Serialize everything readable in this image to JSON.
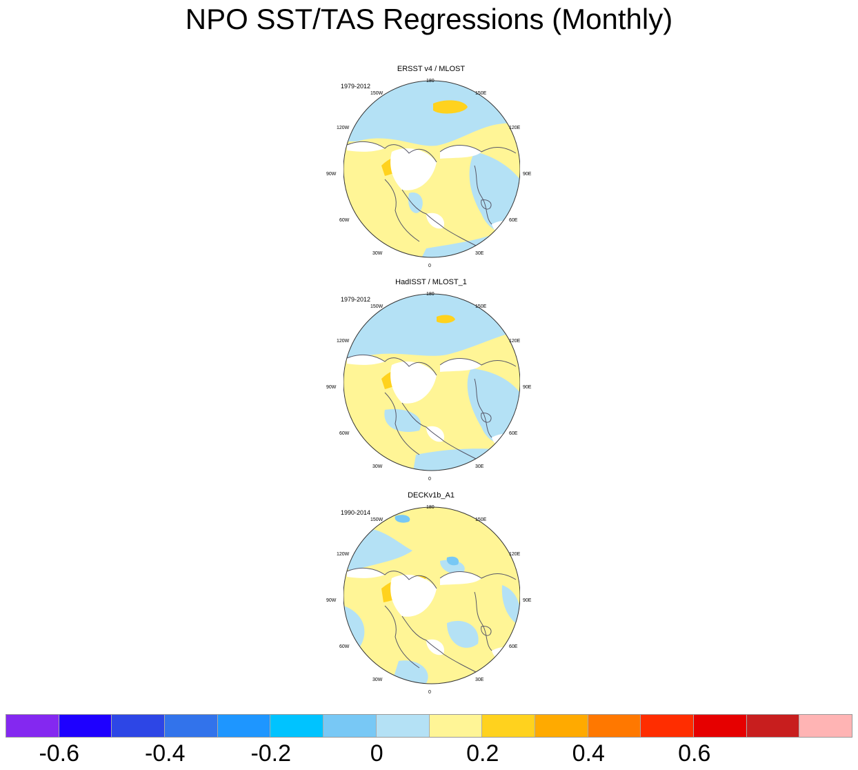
{
  "title": "NPO SST/TAS Regressions (Monthly)",
  "panels": [
    {
      "name": "ERSST v4 / MLOST",
      "years": "1979-2012"
    },
    {
      "name": "HadISST / MLOST_1",
      "years": "1979-2012"
    },
    {
      "name": "DECKv1b_A1",
      "years": "1990-2014"
    }
  ],
  "lon_labels": {
    "l180": "180",
    "l150e": "150E",
    "l120e": "120E",
    "l90e": "90E",
    "l60e": "60E",
    "l30e": "30E",
    "l0": "0",
    "l30w": "30W",
    "l60w": "60W",
    "l90w": "90W",
    "l120w": "120W",
    "l150w": "150W"
  },
  "colorbar": {
    "colors": [
      "#8428f0",
      "#1e00ff",
      "#2d46e6",
      "#3273eb",
      "#1e96ff",
      "#00c3ff",
      "#78c8f5",
      "#b4e1f5",
      "#fff596",
      "#ffd21e",
      "#ffaa00",
      "#ff7800",
      "#ff2d00",
      "#e60000",
      "#c81e1e",
      "#ffb4b4"
    ],
    "ticks": [
      "-0.6",
      "-0.4",
      "-0.2",
      "0",
      "0.2",
      "0.4",
      "0.6"
    ]
  },
  "palette": {
    "yellow": "#fff596",
    "lightblue": "#b4e1f5",
    "gold": "#ffd21e",
    "midblue": "#78c8f5",
    "coast": "#555566"
  }
}
